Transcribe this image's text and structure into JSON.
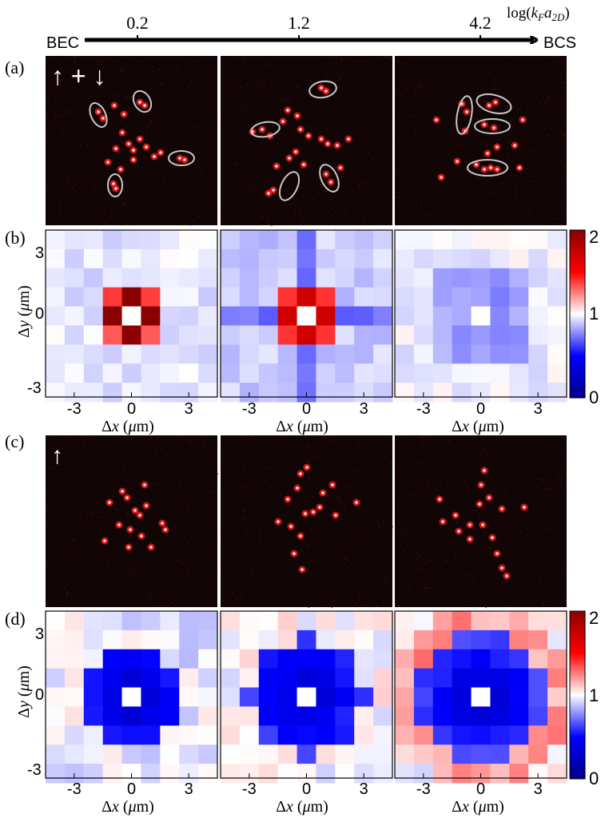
{
  "axis_top": {
    "left_label": "BEC",
    "right_label": "BCS",
    "title": "log(k_F a_2D)",
    "ticks": [
      "0.2",
      "1.2",
      "4.2"
    ]
  },
  "panel_labels": {
    "a": "(a)",
    "b": "(b)",
    "c": "(c)",
    "d": "(d)"
  },
  "inset_labels": {
    "a": "↑ + ↓",
    "c": "↑"
  },
  "map_axes": {
    "x_label": "Δx (μm)",
    "y_label": "Δy (μm)",
    "x_ticks": [
      "-3",
      "0",
      "3"
    ],
    "y_ticks": [
      "3",
      "0",
      "-3"
    ]
  },
  "colorbar": {
    "ticks": [
      "2",
      "1",
      "0"
    ],
    "range": [
      0,
      2
    ],
    "colors": {
      "low": "#00008b",
      "mid": "#ffffff",
      "high": "#8b0000"
    }
  },
  "chart_data": [
    {
      "type": "heatmap",
      "panel": "b",
      "columns": "3 parameter values (0.2, 1.2, 4.2)",
      "grid": "9x9, Δx,Δy from -4 to 4 sites; center masked",
      "center_values": [
        2.0,
        1.7,
        0.75
      ]
    },
    {
      "type": "heatmap",
      "panel": "d",
      "grid": "9x9, Δx,Δy from -4 to 4 sites; center masked",
      "center_values": [
        0.15,
        0.2,
        0.2
      ]
    }
  ]
}
